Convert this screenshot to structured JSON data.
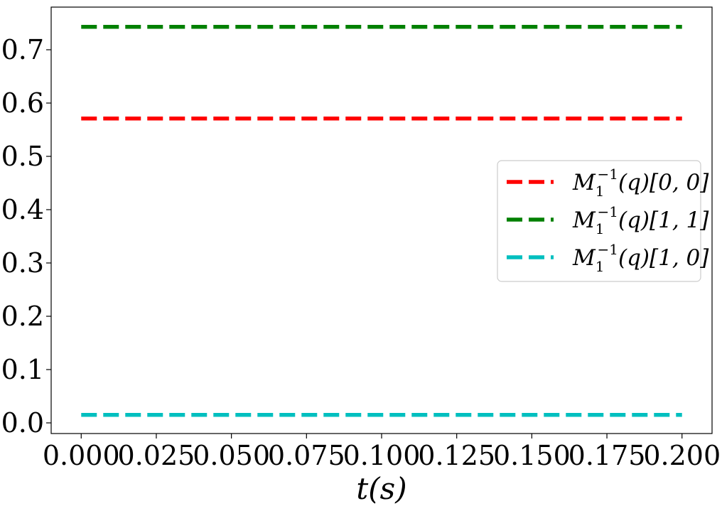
{
  "chart_data": {
    "type": "line",
    "xlabel": "t(s)",
    "ylabel": "",
    "xlim": [
      -0.01,
      0.21
    ],
    "ylim": [
      -0.02,
      0.78
    ],
    "xticks": [
      0.0,
      0.025,
      0.05,
      0.075,
      0.1,
      0.125,
      0.15,
      0.175,
      0.2
    ],
    "xtick_labels": [
      "0.000",
      "0.025",
      "0.050",
      "0.075",
      "0.100",
      "0.125",
      "0.150",
      "0.175",
      "0.200"
    ],
    "yticks": [
      0.0,
      0.1,
      0.2,
      0.3,
      0.4,
      0.5,
      0.6,
      0.7
    ],
    "ytick_labels": [
      "0.0",
      "0.1",
      "0.2",
      "0.3",
      "0.4",
      "0.5",
      "0.6",
      "0.7"
    ],
    "grid": false,
    "legend_position": "center-right",
    "series": [
      {
        "name": "M1^-1(q)[0,0]",
        "name_base": "M",
        "name_sub": "1",
        "name_sup": "−1",
        "name_rest": "(q)[0, 0]",
        "color": "#ff0000",
        "style": "dashed",
        "x": [
          0.0,
          0.2
        ],
        "y": [
          0.571,
          0.571
        ]
      },
      {
        "name": "M1^-1(q)[1,1]",
        "name_base": "M",
        "name_sub": "1",
        "name_sup": "−1",
        "name_rest": "(q)[1, 1]",
        "color": "#008000",
        "style": "dashed",
        "x": [
          0.0,
          0.2
        ],
        "y": [
          0.743,
          0.743
        ]
      },
      {
        "name": "M1^-1(q)[1,0]",
        "name_base": "M",
        "name_sub": "1",
        "name_sup": "−1",
        "name_rest": "(q)[1, 0]",
        "color": "#00bfbf",
        "style": "dashed",
        "x": [
          0.0,
          0.2
        ],
        "y": [
          0.015,
          0.015
        ]
      }
    ]
  }
}
